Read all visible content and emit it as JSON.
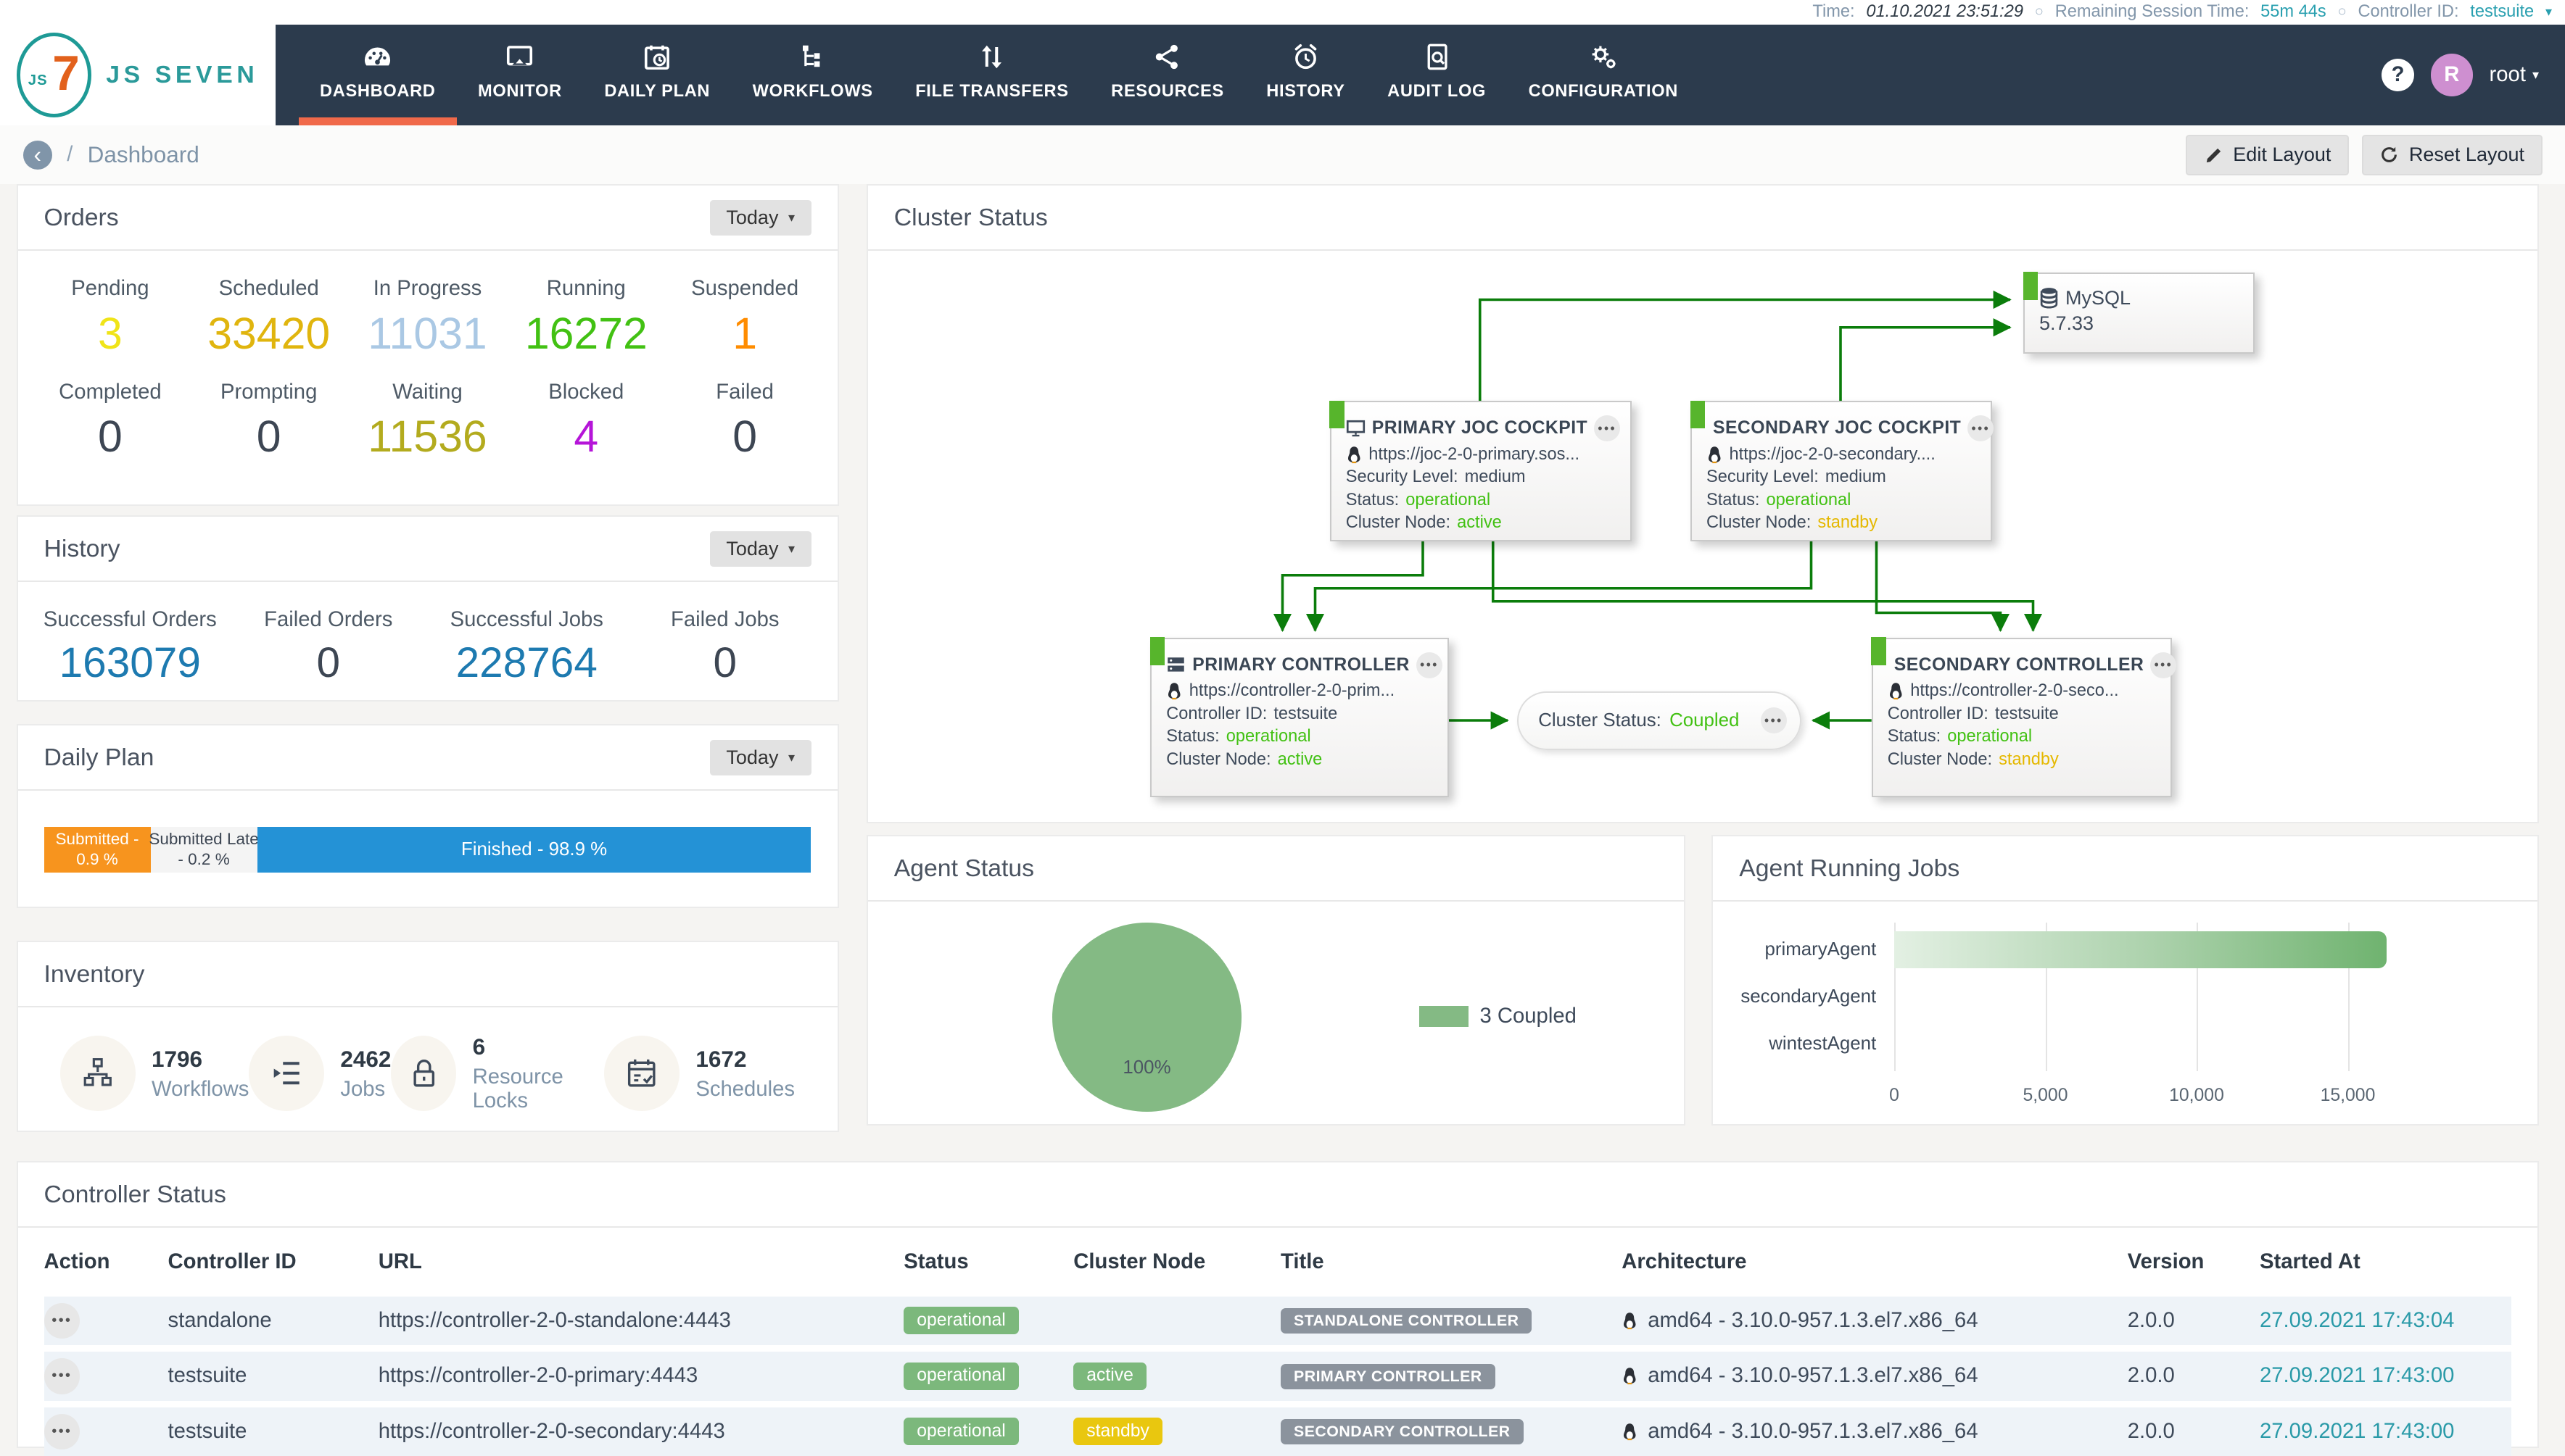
{
  "topbar": {
    "time_label": "Time:",
    "time_value": "01.10.2021 23:51:29",
    "session_label": "Remaining Session Time:",
    "session_value": "55m 44s",
    "controller_label": "Controller ID:",
    "controller_value": "testsuite"
  },
  "nav": {
    "brand_js": "JS",
    "brand_7": "7",
    "brand_name": "JS SEVEN",
    "items": [
      {
        "label": "DASHBOARD",
        "active": true
      },
      {
        "label": "MONITOR"
      },
      {
        "label": "DAILY PLAN"
      },
      {
        "label": "WORKFLOWS"
      },
      {
        "label": "FILE TRANSFERS"
      },
      {
        "label": "RESOURCES"
      },
      {
        "label": "HISTORY"
      },
      {
        "label": "AUDIT LOG"
      },
      {
        "label": "CONFIGURATION"
      }
    ],
    "help": "?",
    "user": {
      "initial": "R",
      "name": "root"
    }
  },
  "breadcrumb": {
    "page": "Dashboard",
    "edit_layout": "Edit Layout",
    "reset_layout": "Reset Layout"
  },
  "orders": {
    "title": "Orders",
    "range": "Today",
    "stats": [
      {
        "label": "Pending",
        "value": "3",
        "color": "#f0e418"
      },
      {
        "label": "Scheduled",
        "value": "33420",
        "color": "#e0b50e"
      },
      {
        "label": "In Progress",
        "value": "11031",
        "color": "#aac8e4"
      },
      {
        "label": "Running",
        "value": "16272",
        "color": "#42c113"
      },
      {
        "label": "Suspended",
        "value": "1",
        "color": "#ff8c00"
      },
      {
        "label": "Completed",
        "value": "0",
        "color": "#3d4653"
      },
      {
        "label": "Prompting",
        "value": "0",
        "color": "#3d4653"
      },
      {
        "label": "Waiting",
        "value": "11536",
        "color": "#b3ab1e"
      },
      {
        "label": "Blocked",
        "value": "4",
        "color": "#b515d8"
      },
      {
        "label": "Failed",
        "value": "0",
        "color": "#3d4653"
      }
    ]
  },
  "history": {
    "title": "History",
    "range": "Today",
    "stats": [
      {
        "label": "Successful Orders",
        "value": "163079",
        "color": "#1d7ab0"
      },
      {
        "label": "Failed Orders",
        "value": "0",
        "color": "#3d4653"
      },
      {
        "label": "Successful Jobs",
        "value": "228764",
        "color": "#1d7ab0"
      },
      {
        "label": "Failed Jobs",
        "value": "0",
        "color": "#3d4653"
      }
    ]
  },
  "daily_plan": {
    "title": "Daily Plan",
    "range": "Today",
    "segments": [
      {
        "line1": "Submitted -",
        "line2": "0.9 %",
        "width": "13.9%",
        "bg": "#f7941e",
        "color": "#ffffff"
      },
      {
        "line1": "Submitted Late",
        "line2": "- 0.2 %",
        "width": "13.9%",
        "bg": "#f4f4f4",
        "color": "#3d4653"
      },
      {
        "line1": "Finished - 98.9 %",
        "line2": "",
        "width": "72.2%",
        "bg": "#2492d6",
        "color": "#ffffff"
      }
    ]
  },
  "inventory": {
    "title": "Inventory",
    "items": [
      {
        "value": "1796",
        "label": "Workflows"
      },
      {
        "value": "2462",
        "label": "Jobs"
      },
      {
        "value": "6",
        "label": "Resource Locks"
      },
      {
        "value": "1672",
        "label": "Schedules"
      }
    ]
  },
  "cluster": {
    "title": "Cluster Status",
    "mysql": {
      "name": "MySQL",
      "version": "5.7.33"
    },
    "primary_joc": {
      "title": "PRIMARY JOC COCKPIT",
      "url": "https://joc-2-0-primary.sos...",
      "security_label": "Security Level:",
      "security": "medium",
      "status_label": "Status:",
      "status": "operational",
      "node_label": "Cluster Node:",
      "node": "active",
      "node_color": "#42c113"
    },
    "secondary_joc": {
      "title": "SECONDARY JOC COCKPIT",
      "url": "https://joc-2-0-secondary....",
      "security_label": "Security Level:",
      "security": "medium",
      "status_label": "Status:",
      "status": "operational",
      "node_label": "Cluster Node:",
      "node": "standby",
      "node_color": "#e5b800"
    },
    "primary_controller": {
      "title": "PRIMARY CONTROLLER",
      "url": "https://controller-2-0-prim...",
      "id_label": "Controller ID:",
      "id": "testsuite",
      "status_label": "Status:",
      "status": "operational",
      "node_label": "Cluster Node:",
      "node": "active",
      "node_color": "#42c113"
    },
    "secondary_controller": {
      "title": "SECONDARY CONTROLLER",
      "url": "https://controller-2-0-seco...",
      "id_label": "Controller ID:",
      "id": "testsuite",
      "status_label": "Status:",
      "status": "operational",
      "node_label": "Cluster Node:",
      "node": "standby",
      "node_color": "#e5b800"
    },
    "coupling": {
      "label": "Cluster Status:",
      "value": "Coupled"
    }
  },
  "agent_status": {
    "title": "Agent Status",
    "pie_label": "100%",
    "legend": "3 Coupled",
    "color": "#84ba84"
  },
  "agent_running_jobs": {
    "title": "Agent Running Jobs"
  },
  "controller_status": {
    "title": "Controller Status",
    "columns": [
      "Action",
      "Controller ID",
      "URL",
      "Status",
      "Cluster Node",
      "Title",
      "Architecture",
      "Version",
      "Started At"
    ],
    "rows": [
      {
        "controller_id": "standalone",
        "url": "https://controller-2-0-standalone:4443",
        "status": "operational",
        "status_bg": "#7cb87c",
        "node": "",
        "node_bg": "",
        "title": "STANDALONE CONTROLLER",
        "title_bg": "#8b939d",
        "architecture": "amd64 - 3.10.0-957.1.3.el7.x86_64",
        "version": "2.0.0",
        "started_at": "27.09.2021 17:43:04"
      },
      {
        "controller_id": "testsuite",
        "url": "https://controller-2-0-primary:4443",
        "status": "operational",
        "status_bg": "#7cb87c",
        "node": "active",
        "node_bg": "#7cb87c",
        "title": "PRIMARY CONTROLLER",
        "title_bg": "#8b939d",
        "architecture": "amd64 - 3.10.0-957.1.3.el7.x86_64",
        "version": "2.0.0",
        "started_at": "27.09.2021 17:43:00"
      },
      {
        "controller_id": "testsuite",
        "url": "https://controller-2-0-secondary:4443",
        "status": "operational",
        "status_bg": "#7cb87c",
        "node": "standby",
        "node_bg": "#e9c70f",
        "title": "SECONDARY CONTROLLER",
        "title_bg": "#8b939d",
        "architecture": "amd64 - 3.10.0-957.1.3.el7.x86_64",
        "version": "2.0.0",
        "started_at": "27.09.2021 17:43:00"
      }
    ]
  },
  "chart_data": [
    {
      "type": "pie",
      "title": "Agent Status",
      "slices": [
        {
          "label": "Coupled",
          "value": 3,
          "pct": 100,
          "color": "#84ba84"
        }
      ],
      "data_labels": [
        "100%"
      ],
      "legend": [
        {
          "label": "3 Coupled",
          "color": "#84ba84"
        }
      ],
      "legend_position": "right"
    },
    {
      "type": "bar",
      "orientation": "horizontal",
      "title": "Agent Running Jobs",
      "categories": [
        "primaryAgent",
        "secondaryAgent",
        "wintestAgent"
      ],
      "values": [
        16272,
        0,
        0
      ],
      "x_ticks": [
        "0",
        "5,000",
        "10,000",
        "15,000"
      ],
      "x_tick_values": [
        0,
        5000,
        10000,
        15000
      ],
      "xlim": [
        0,
        18000
      ],
      "grid": true,
      "bar_gradient": [
        "#e3f0e3",
        "#6fb36f"
      ]
    }
  ]
}
